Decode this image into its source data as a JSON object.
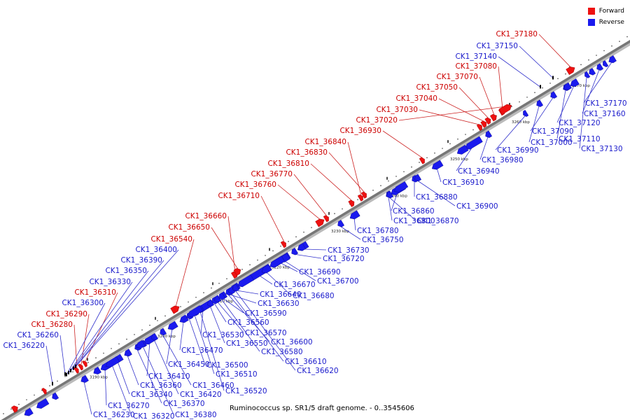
{
  "caption": "Ruminococcus sp. SR1/5 draft genome. - 0..3545606",
  "legend": {
    "forward_label": "Forward",
    "reverse_label": "Reverse",
    "forward_color": "#ee1111",
    "reverse_color": "#1a1aee"
  },
  "axis": {
    "tick_unit": "kbp",
    "major_ticks": [
      3190,
      3200,
      3210,
      3220,
      3230,
      3240,
      3250,
      3260,
      3270
    ]
  },
  "genes_forward": [
    "CK1_37180",
    "CK1_37080",
    "CK1_37070",
    "CK1_37050",
    "CK1_37040",
    "CK1_37030",
    "CK1_37020",
    "CK1_36930",
    "CK1_36840",
    "CK1_36830",
    "CK1_36810",
    "CK1_36770",
    "CK1_36760",
    "CK1_36710",
    "CK1_36660",
    "CK1_36650",
    "CK1_36540",
    "CK1_36310",
    "CK1_36290",
    "CK1_36280"
  ],
  "genes_reverse_top": [
    "CK1_37150",
    "CK1_37140",
    "CK1_36400",
    "CK1_36390",
    "CK1_36350",
    "CK1_36330",
    "CK1_36300",
    "CK1_36260",
    "CK1_36220"
  ],
  "genes_reverse_bottom": [
    "CK1_37170",
    "CK1_37160",
    "CK1_37120",
    "CK1_37090",
    "CK1_37110",
    "CK1_37000",
    "CK1_37130",
    "CK1_36990",
    "CK1_36980",
    "CK1_36940",
    "CK1_36910",
    "CK1_36880",
    "CK1_36900",
    "CK1_36860",
    "CK1_36800",
    "CK1_36870",
    "CK1_36780",
    "CK1_36750",
    "CK1_36730",
    "CK1_36720",
    "CK1_36690",
    "CK1_36700",
    "CK1_36670",
    "CK1_36680",
    "CK1_36640",
    "CK1_36630",
    "CK1_36590",
    "CK1_36560",
    "CK1_36570",
    "CK1_36530",
    "CK1_36550",
    "CK1_36600",
    "CK1_36580",
    "CK1_36610",
    "CK1_36620",
    "CK1_36470",
    "CK1_36450",
    "CK1_36500",
    "CK1_36510",
    "CK1_36410",
    "CK1_36460",
    "CK1_36420",
    "CK1_36520",
    "CK1_36360",
    "CK1_36340",
    "CK1_36370",
    "CK1_36270",
    "CK1_36230",
    "CK1_36320",
    "CK1_36380"
  ]
}
